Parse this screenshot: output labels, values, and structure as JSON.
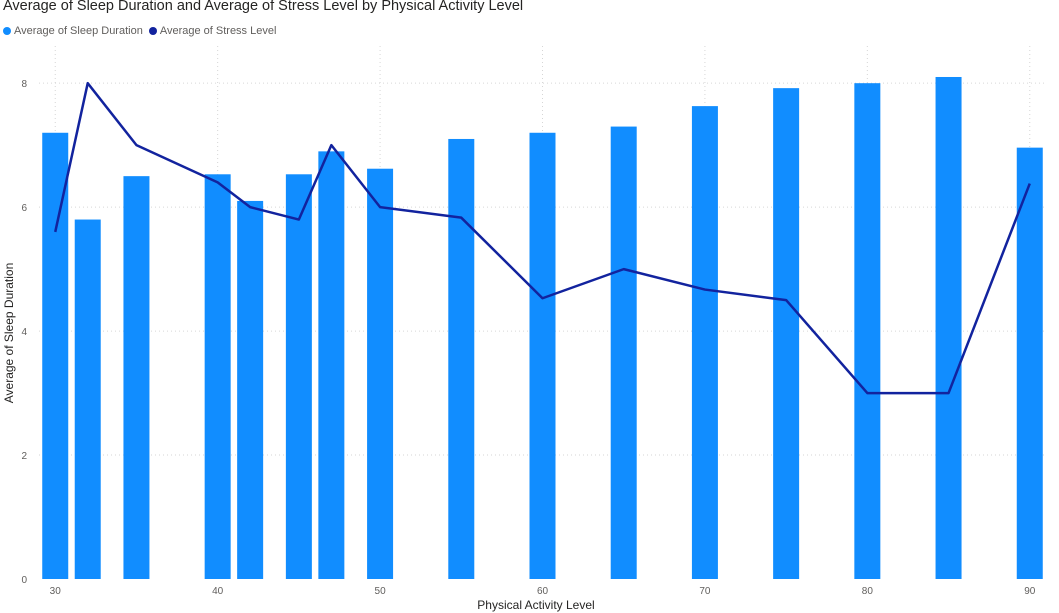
{
  "chart_data": {
    "type": "bar",
    "title": "Average of Sleep Duration and Average of Stress Level by Physical Activity Level",
    "xlabel": "Physical Activity Level",
    "ylabel": "Average of Sleep Duration",
    "xlim": [
      29,
      91
    ],
    "ylim": [
      0,
      8.6
    ],
    "x_ticks": [
      30,
      40,
      50,
      60,
      70,
      80,
      90
    ],
    "y_ticks": [
      0,
      2,
      4,
      6,
      8
    ],
    "grid": true,
    "legend_position": "top-left",
    "x": [
      30,
      32,
      35,
      40,
      42,
      45,
      47,
      50,
      55,
      60,
      65,
      70,
      75,
      80,
      85,
      90
    ],
    "series": [
      {
        "name": "Average of Sleep Duration",
        "type": "bar",
        "color": "#118dff",
        "values": [
          7.2,
          5.8,
          6.5,
          6.53,
          6.1,
          6.53,
          6.9,
          6.62,
          7.1,
          7.2,
          7.3,
          7.63,
          7.92,
          8.0,
          8.1,
          6.96
        ]
      },
      {
        "name": "Average of Stress Level",
        "type": "line",
        "color": "#12239e",
        "values": [
          5.6,
          8.0,
          7.0,
          6.4,
          6.0,
          5.8,
          7.0,
          6.0,
          5.83,
          4.53,
          5.0,
          4.67,
          4.5,
          3.0,
          3.0,
          6.38
        ]
      }
    ]
  }
}
